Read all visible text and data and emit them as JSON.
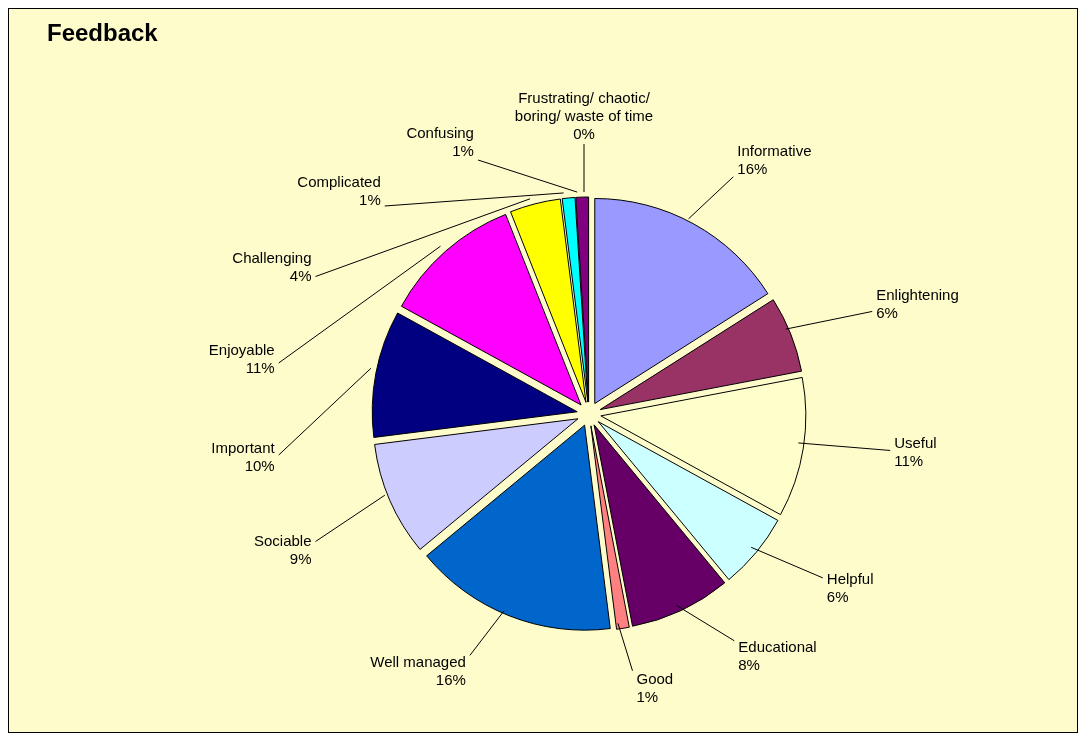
{
  "chart_data": {
    "type": "pie",
    "title": "Feedback",
    "categories": [
      "Informative",
      "Enlightening",
      "Useful",
      "Helpful",
      "Educational",
      "Good",
      "Well managed",
      "Sociable",
      "Important",
      "Enjoyable",
      "Challenging",
      "Complicated",
      "Confusing",
      "Frustrating/ chaotic/ boring/ waste of time"
    ],
    "values": [
      16,
      6,
      11,
      6,
      8,
      1,
      16,
      9,
      10,
      11,
      4,
      1,
      1,
      0
    ],
    "value_labels": [
      "16%",
      "6%",
      "11%",
      "6%",
      "8%",
      "1%",
      "16%",
      "9%",
      "10%",
      "11%",
      "4%",
      "1%",
      "1%",
      "0%"
    ],
    "colors": [
      "#9999ff",
      "#993366",
      "#ffffcc",
      "#ccffff",
      "#660066",
      "#ff8080",
      "#0066cc",
      "#ccccff",
      "#000080",
      "#ff00ff",
      "#ffff00",
      "#00ffff",
      "#800080",
      "#800000"
    ]
  }
}
